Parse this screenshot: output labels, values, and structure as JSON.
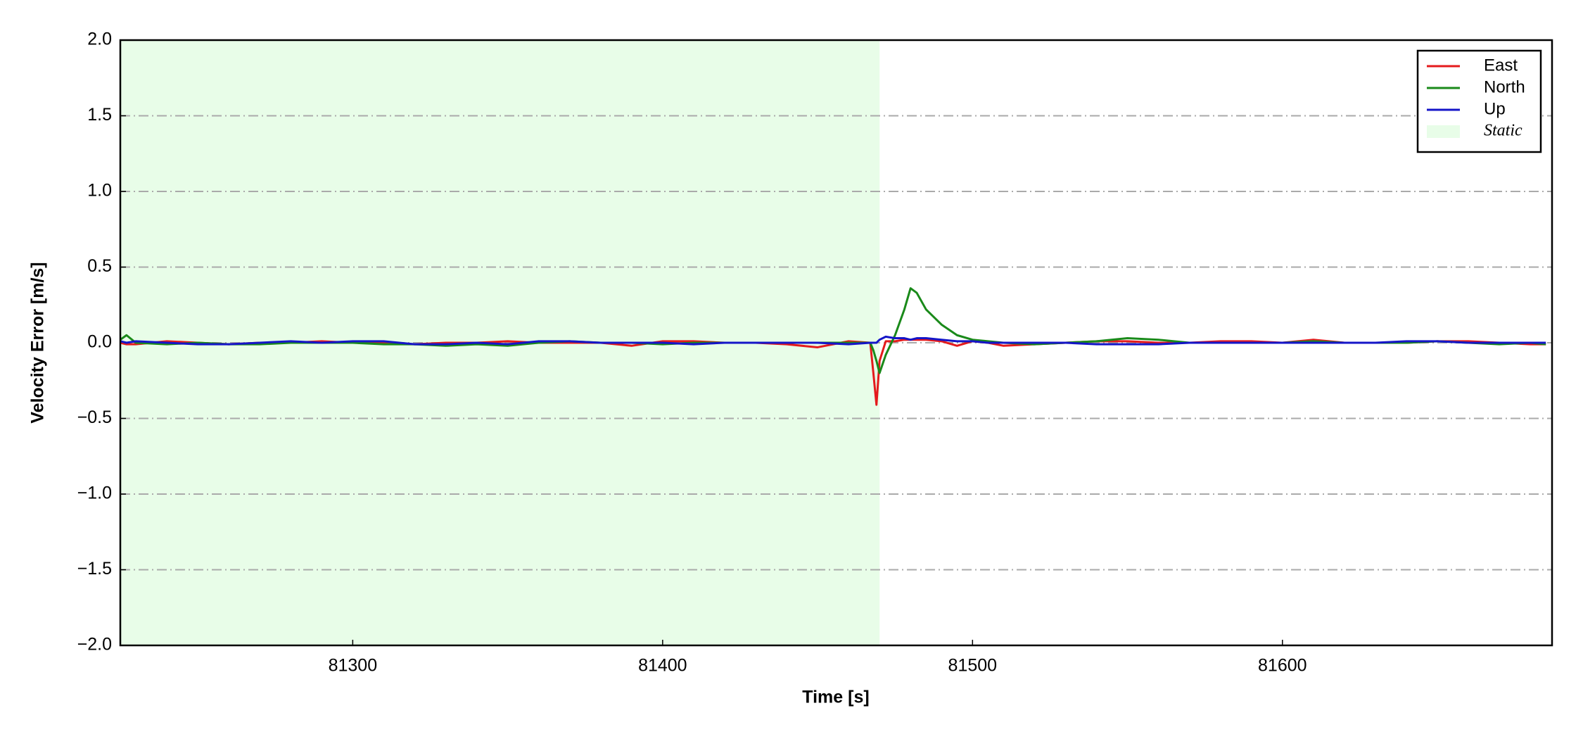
{
  "chart_data": {
    "type": "line",
    "xlabel": "Time [s]",
    "ylabel": "Velocity Error [m/s]",
    "x": [
      81225,
      81227,
      81230,
      81240,
      81250,
      81260,
      81270,
      81280,
      81290,
      81300,
      81310,
      81320,
      81330,
      81340,
      81350,
      81360,
      81370,
      81380,
      81390,
      81400,
      81410,
      81420,
      81430,
      81440,
      81450,
      81460,
      81467,
      81468,
      81469,
      81470,
      81472,
      81475,
      81478,
      81480,
      81482,
      81485,
      81490,
      81495,
      81500,
      81505,
      81510,
      81520,
      81530,
      81540,
      81550,
      81560,
      81570,
      81580,
      81590,
      81600,
      81610,
      81620,
      81630,
      81640,
      81650,
      81660,
      81670,
      81680,
      81685
    ],
    "series": [
      {
        "name": "East",
        "color": "#e41a1c",
        "values": [
          0,
          -0.01,
          -0.01,
          0.01,
          0,
          -0.01,
          0,
          0,
          0.01,
          0,
          0,
          -0.01,
          0,
          0,
          0.01,
          0,
          0,
          0,
          -0.02,
          0.01,
          0.01,
          0,
          0,
          -0.01,
          -0.03,
          0.01,
          0,
          -0.2,
          -0.41,
          -0.12,
          0.01,
          0.01,
          0.02,
          0.02,
          0.02,
          0.02,
          0.01,
          -0.02,
          0.01,
          0,
          -0.02,
          -0.01,
          0,
          0.01,
          0.01,
          0,
          0,
          0.01,
          0.01,
          0,
          0.02,
          0,
          0,
          0,
          0.01,
          0.01,
          0,
          -0.01,
          -0.01
        ]
      },
      {
        "name": "North",
        "color": "#1a8a1a",
        "values": [
          0.02,
          0.05,
          0,
          -0.01,
          0,
          -0.01,
          -0.01,
          0,
          0,
          0,
          -0.01,
          -0.01,
          -0.02,
          -0.01,
          -0.02,
          0,
          0.01,
          0,
          0,
          -0.01,
          0,
          0,
          0,
          0,
          0,
          0,
          0,
          -0.05,
          -0.12,
          -0.2,
          -0.08,
          0.05,
          0.22,
          0.36,
          0.33,
          0.22,
          0.12,
          0.05,
          0.02,
          0.01,
          0,
          -0.01,
          0,
          0.01,
          0.03,
          0.02,
          0,
          0,
          0,
          0,
          0.01,
          0,
          0,
          0,
          0.01,
          0,
          -0.01,
          0,
          -0.01
        ]
      },
      {
        "name": "Up",
        "color": "#1515c8",
        "values": [
          0.01,
          0,
          0.01,
          0,
          -0.01,
          -0.01,
          0,
          0.01,
          0,
          0.01,
          0.01,
          -0.01,
          -0.01,
          0,
          -0.01,
          0.01,
          0.01,
          0,
          0,
          0,
          -0.01,
          0,
          0,
          0,
          0,
          -0.01,
          0,
          0,
          0,
          0.02,
          0.04,
          0.03,
          0.03,
          0.02,
          0.03,
          0.03,
          0.02,
          0.01,
          0.01,
          0,
          0,
          0,
          0,
          -0.01,
          -0.01,
          -0.01,
          0,
          0,
          0,
          0,
          0,
          0,
          0,
          0.01,
          0.01,
          0,
          0,
          0,
          0
        ]
      }
    ],
    "shade": {
      "label": "Static",
      "range": [
        81225,
        81470
      ],
      "color": "#e8fde8"
    },
    "xlim": [
      81225,
      81687
    ],
    "ylim": [
      -2,
      2
    ],
    "xticks": [
      81300,
      81400,
      81500,
      81600
    ],
    "yticks": [
      {
        "value": -2,
        "label": "−2.0"
      },
      {
        "value": -1.5,
        "label": "−1.5"
      },
      {
        "value": -1,
        "label": "−1.0"
      },
      {
        "value": -0.5,
        "label": "−0.5"
      },
      {
        "value": 0,
        "label": "0.0"
      },
      0.5,
      {
        "value": 1,
        "label": "1.0"
      },
      1.5,
      {
        "value": 2,
        "label": "2.0"
      }
    ],
    "grid": true,
    "legend": "upper right"
  }
}
